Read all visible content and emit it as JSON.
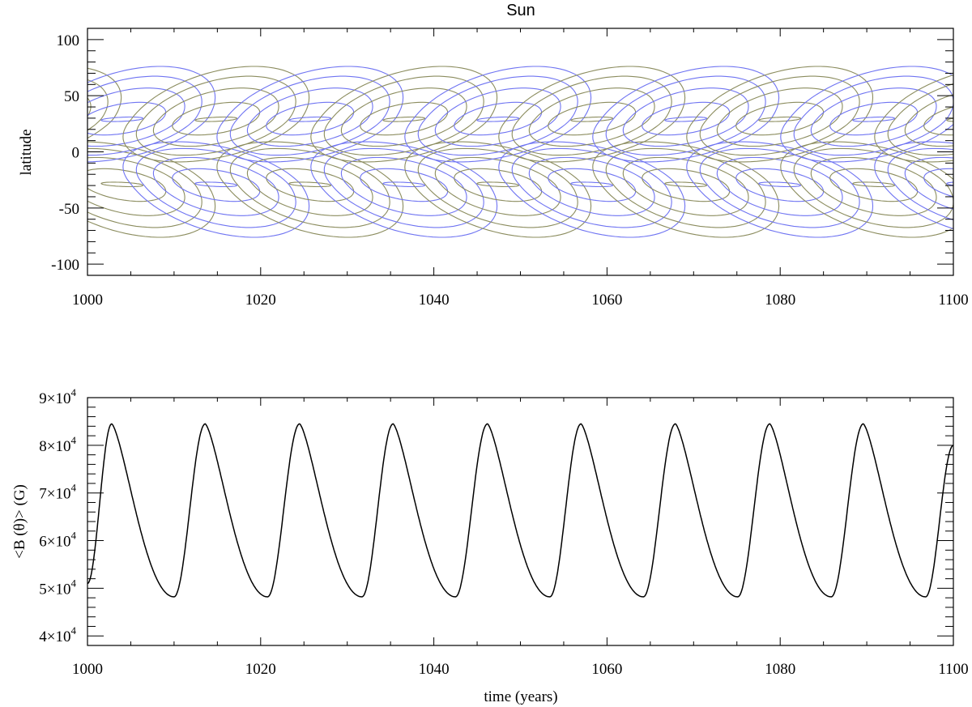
{
  "chart_data": [
    {
      "type": "contour",
      "title": "Sun",
      "xlabel": "",
      "ylabel": "latitude",
      "xlim": [
        1000,
        1100
      ],
      "ylim": [
        -110,
        110
      ],
      "xticks": [
        "1000",
        "1020",
        "1040",
        "1060",
        "1080",
        "1100"
      ],
      "yticks": [
        "100",
        "50",
        "0",
        "-50",
        "-100"
      ],
      "yticks_values": [
        100,
        50,
        0,
        -50,
        -100
      ],
      "period_years": 21.7,
      "first_blue_center_north": 1004,
      "center_latitude_abs": 27,
      "contour_levels": 5,
      "series": [
        {
          "color": "#6f74f2"
        },
        {
          "color": "#8b8c5e"
        }
      ]
    },
    {
      "type": "line",
      "title": "",
      "xlabel": "time  (years)",
      "ylabel": "<B (θ)>  (G)",
      "xlim": [
        1000,
        1100
      ],
      "ylim": [
        38000,
        90000
      ],
      "xticks": [
        "1000",
        "1020",
        "1040",
        "1060",
        "1080",
        "1100"
      ],
      "yticks_mantissa": [
        "9",
        "8",
        "7",
        "6",
        "5",
        "4"
      ],
      "yticks_values": [
        90000,
        80000,
        70000,
        60000,
        50000,
        40000
      ],
      "ytick_base": "×10",
      "ytick_exp": "4",
      "period_years": 10.85,
      "peaks_x": [
        1002.8,
        1013.6,
        1024.5,
        1035.3,
        1046.2,
        1057.0,
        1067.9,
        1078.8,
        1089.6
      ],
      "troughs_x": [
        1010.0,
        1020.8,
        1031.7,
        1042.5,
        1053.4,
        1064.2,
        1075.1,
        1085.9,
        1096.8
      ],
      "peak_value": 84500,
      "trough_value": 48200,
      "start_value": 51000,
      "end_value": 80000,
      "color": "#000000"
    }
  ]
}
